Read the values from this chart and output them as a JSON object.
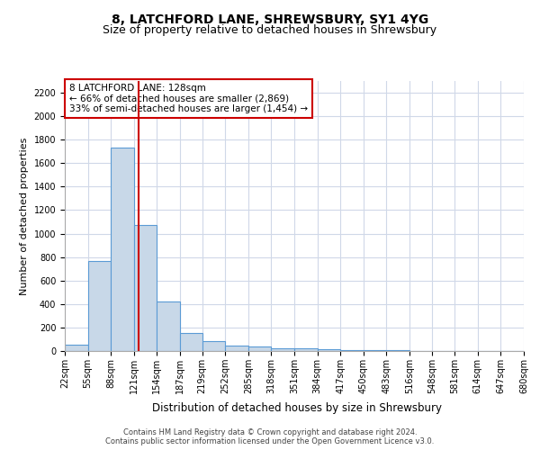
{
  "title": "8, LATCHFORD LANE, SHREWSBURY, SY1 4YG",
  "subtitle": "Size of property relative to detached houses in Shrewsbury",
  "xlabel": "Distribution of detached houses by size in Shrewsbury",
  "ylabel": "Number of detached properties",
  "annotation_line1": "8 LATCHFORD LANE: 128sqm",
  "annotation_line2": "← 66% of detached houses are smaller (2,869)",
  "annotation_line3": "33% of semi-detached houses are larger (1,454) →",
  "bar_edges": [
    22,
    55,
    88,
    121,
    154,
    187,
    219,
    252,
    285,
    318,
    351,
    384,
    417,
    450,
    483,
    516,
    548,
    581,
    614,
    647,
    680
  ],
  "bar_heights": [
    55,
    770,
    1730,
    1070,
    420,
    155,
    83,
    45,
    38,
    25,
    20,
    15,
    8,
    5,
    4,
    3,
    2,
    2,
    1,
    1
  ],
  "bar_color": "#c8d8e8",
  "bar_edge_color": "#5b9bd5",
  "red_line_x": 128,
  "ylim": [
    0,
    2300
  ],
  "yticks": [
    0,
    200,
    400,
    600,
    800,
    1000,
    1200,
    1400,
    1600,
    1800,
    2000,
    2200
  ],
  "footer_line1": "Contains HM Land Registry data © Crown copyright and database right 2024.",
  "footer_line2": "Contains public sector information licensed under the Open Government Licence v3.0.",
  "bg_color": "#ffffff",
  "grid_color": "#d0d8e8",
  "annotation_box_color": "#ffffff",
  "annotation_box_edge": "#cc0000",
  "red_line_color": "#cc0000",
  "title_fontsize": 10,
  "subtitle_fontsize": 9,
  "tick_fontsize": 7,
  "ylabel_fontsize": 8,
  "xlabel_fontsize": 8.5,
  "annotation_fontsize": 7.5
}
